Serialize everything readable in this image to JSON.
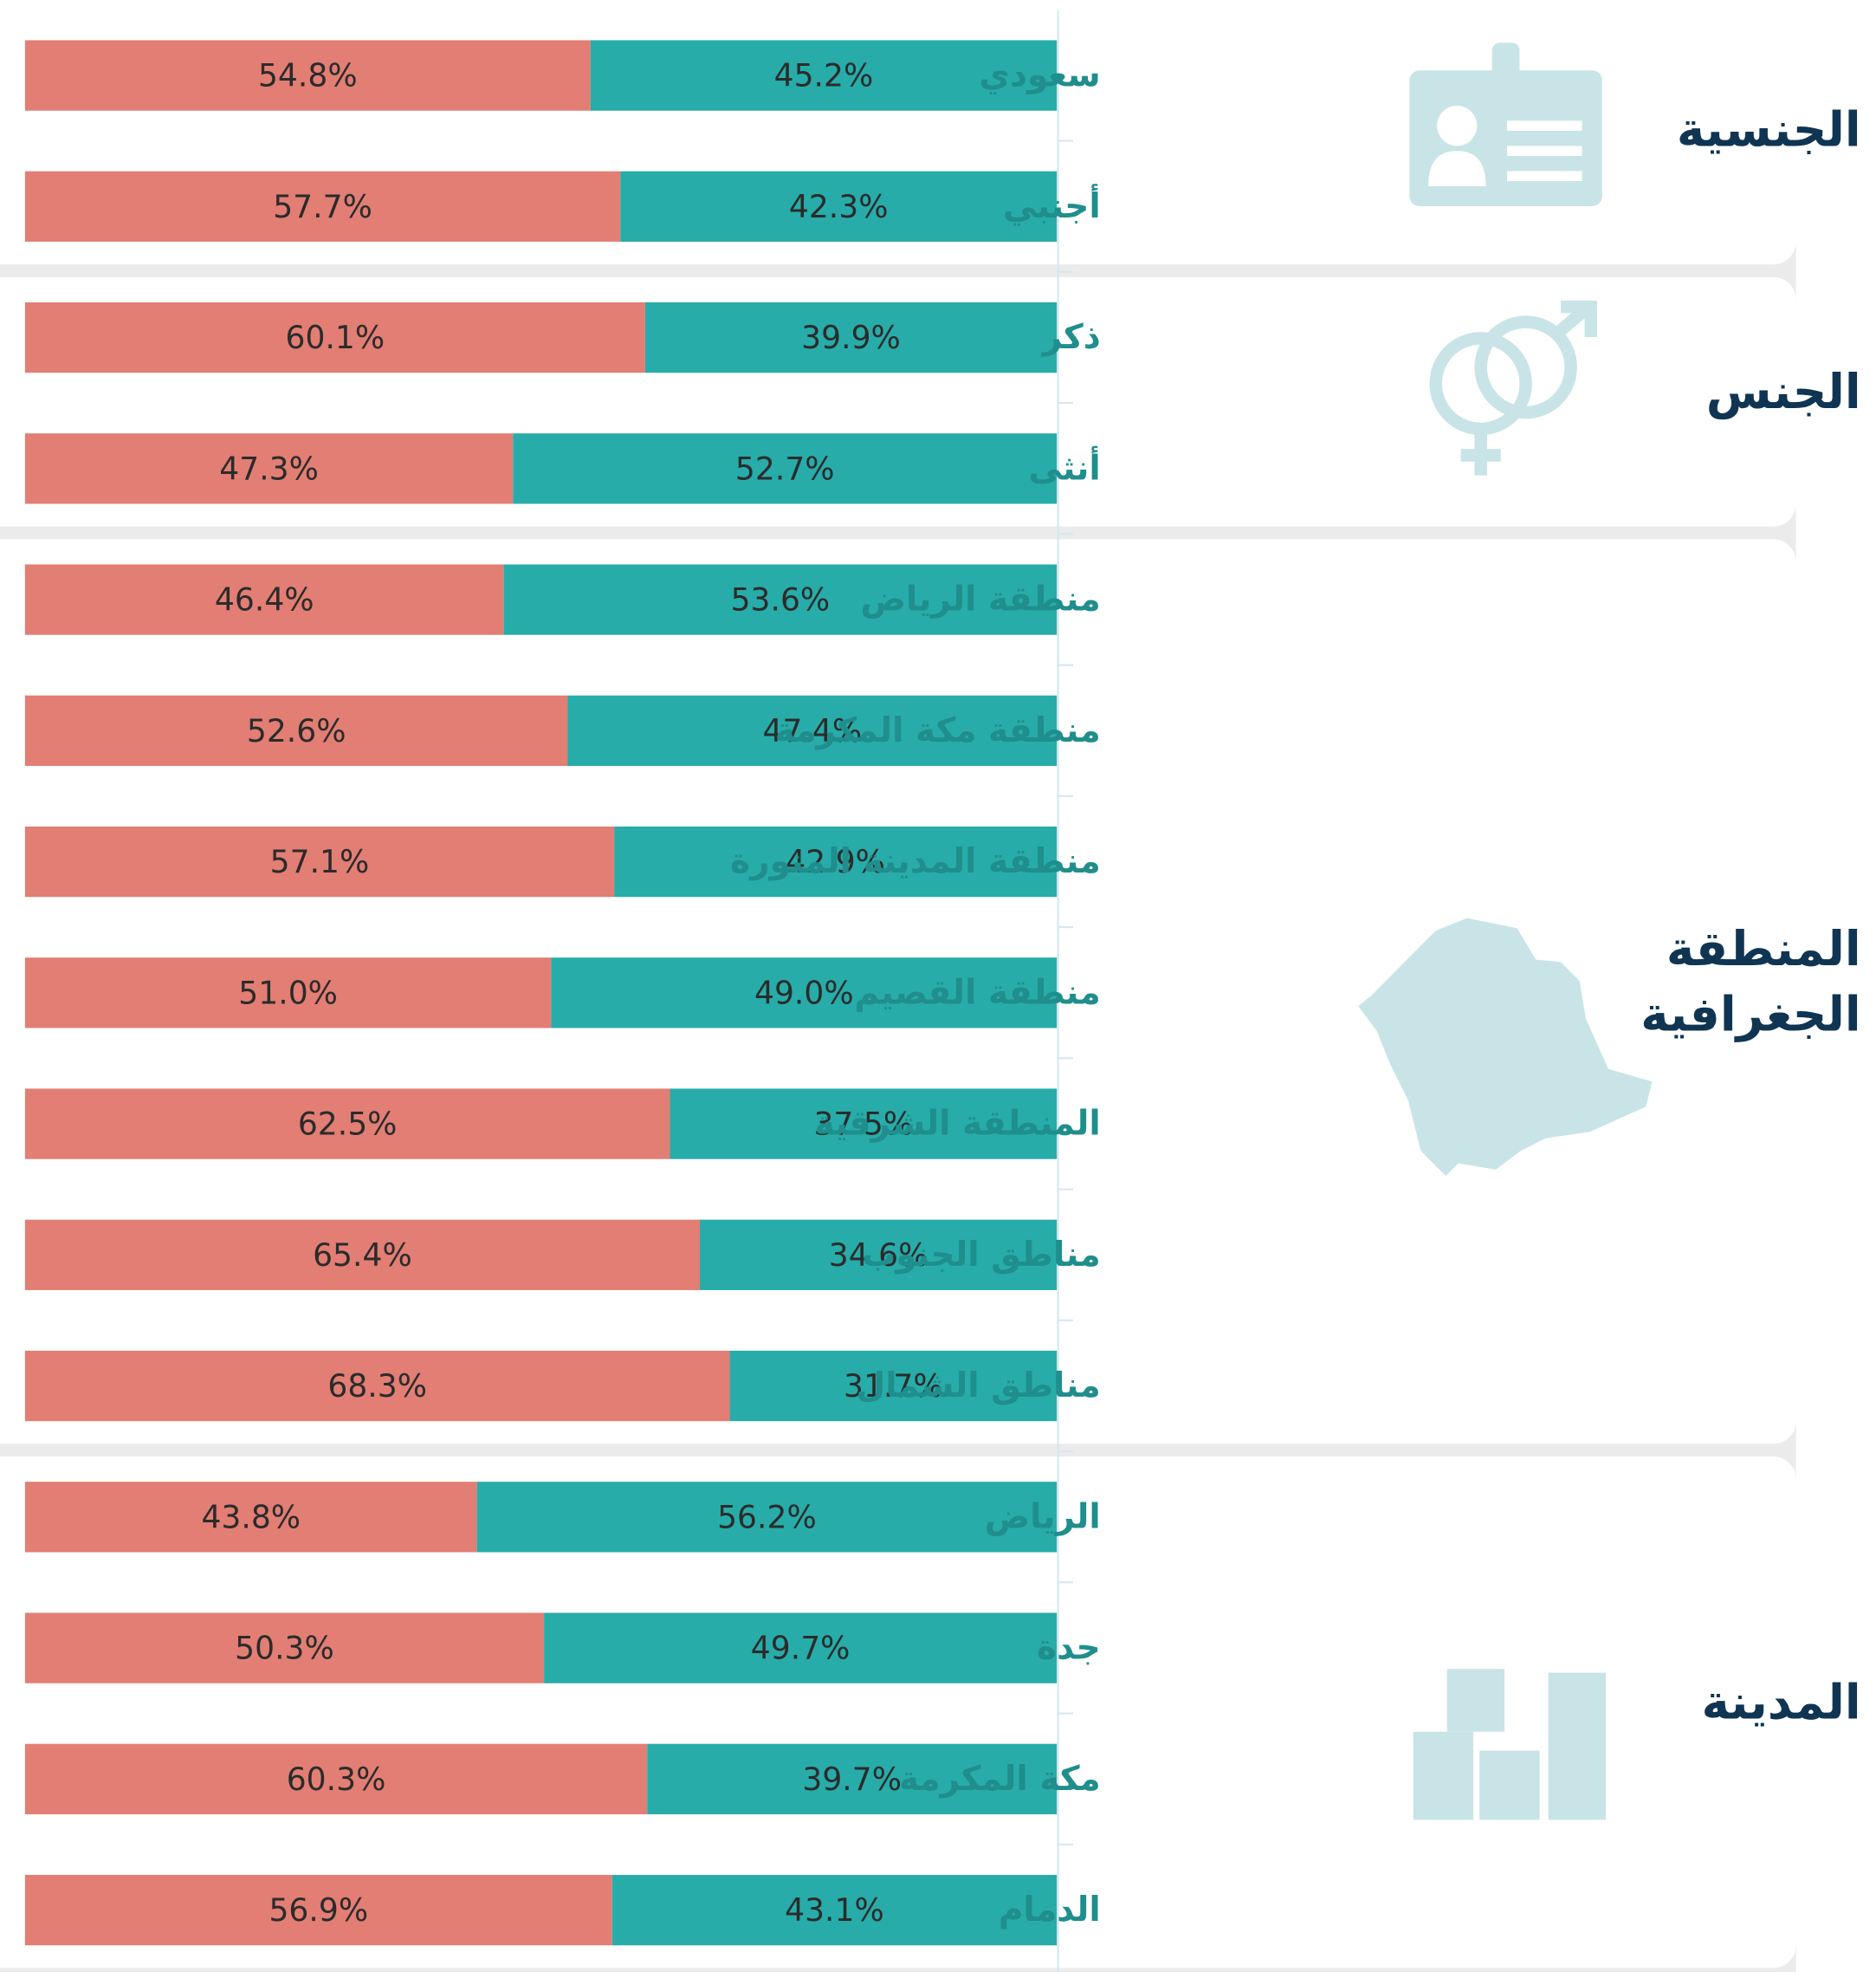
{
  "chart_data": {
    "type": "stacked-bar",
    "colors": [
      "#e27e74",
      "#27aca9"
    ],
    "groups": [
      {
        "title": [
          "الجنسية"
        ],
        "categories": [
          "سعودي",
          "أجنبي"
        ],
        "series": [
          {
            "values": [
              54.8,
              57.7
            ],
            "value_labels": [
              "54.8%",
              "57.7%"
            ]
          },
          {
            "values": [
              45.2,
              42.3
            ],
            "value_labels": [
              "45.2%",
              "42.3%"
            ]
          }
        ]
      },
      {
        "title": [
          "الجنس"
        ],
        "categories": [
          "ذكر",
          "أنثى"
        ],
        "series": [
          {
            "values": [
              60.1,
              47.3
            ],
            "value_labels": [
              "60.1%",
              "47.3%"
            ]
          },
          {
            "values": [
              39.9,
              52.7
            ],
            "value_labels": [
              "39.9%",
              "52.7%"
            ]
          }
        ]
      },
      {
        "title": [
          "المنطقة",
          "الجغرافية"
        ],
        "categories": [
          "منطقة الرياض",
          "منطقة مكة المكرمة",
          "منطقة المدينة المنورة",
          "منطقة القصيم",
          "المنطقة الشرقية",
          "مناطق الجنوب",
          "مناطق الشمال"
        ],
        "series": [
          {
            "values": [
              46.4,
              52.6,
              57.1,
              51.0,
              62.5,
              65.4,
              68.3
            ],
            "value_labels": [
              "46.4%",
              "52.6%",
              "57.1%",
              "51.0%",
              "62.5%",
              "65.4%",
              "68.3%"
            ]
          },
          {
            "values": [
              53.6,
              47.4,
              42.9,
              49.0,
              37.5,
              34.6,
              31.7
            ],
            "value_labels": [
              "53.6%",
              "47.4%",
              "42.9%",
              "49.0%",
              "37.5%",
              "34.6%",
              "31.7%"
            ]
          }
        ]
      },
      {
        "title": [
          "المدينة"
        ],
        "categories": [
          "الرياض",
          "جدة",
          "مكة المكرمة",
          "الدمام"
        ],
        "series": [
          {
            "values": [
              43.8,
              50.3,
              60.3,
              56.9
            ],
            "value_labels": [
              "43.8%",
              "50.3%",
              "60.3%",
              "56.9%"
            ]
          },
          {
            "values": [
              56.2,
              49.7,
              39.7,
              43.1
            ],
            "value_labels": [
              "56.2%",
              "49.7%",
              "39.7%",
              "43.1%"
            ]
          }
        ]
      }
    ]
  }
}
